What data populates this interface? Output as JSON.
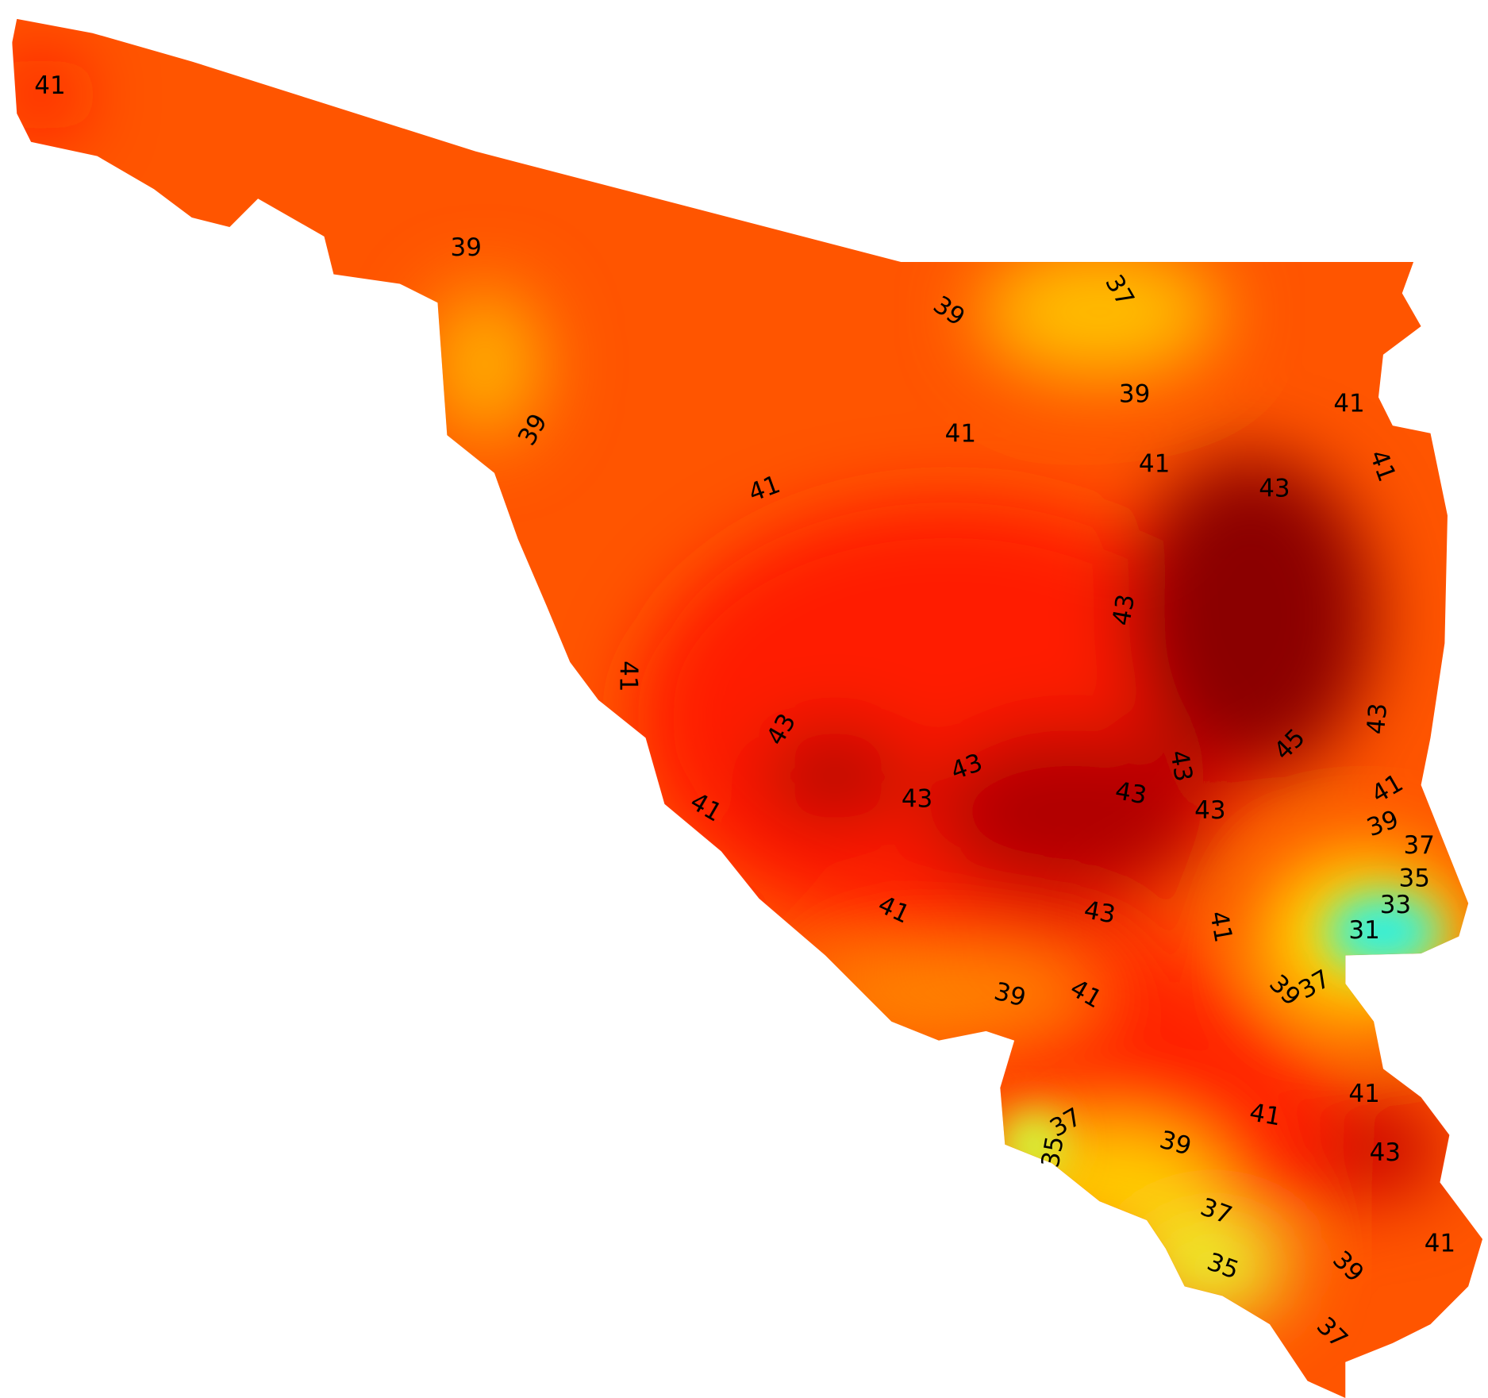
{
  "contour_labels": [
    41,
    39,
    39,
    37,
    39,
    39,
    41,
    41,
    41,
    41,
    41,
    43,
    43,
    41,
    43,
    43,
    45,
    43,
    43,
    43,
    43,
    43,
    41,
    41,
    39,
    37,
    35,
    33,
    31,
    41,
    41,
    43,
    39,
    37,
    39,
    41,
    41,
    41,
    37,
    39,
    35,
    43,
    37,
    41,
    39,
    35,
    37
  ]
}
